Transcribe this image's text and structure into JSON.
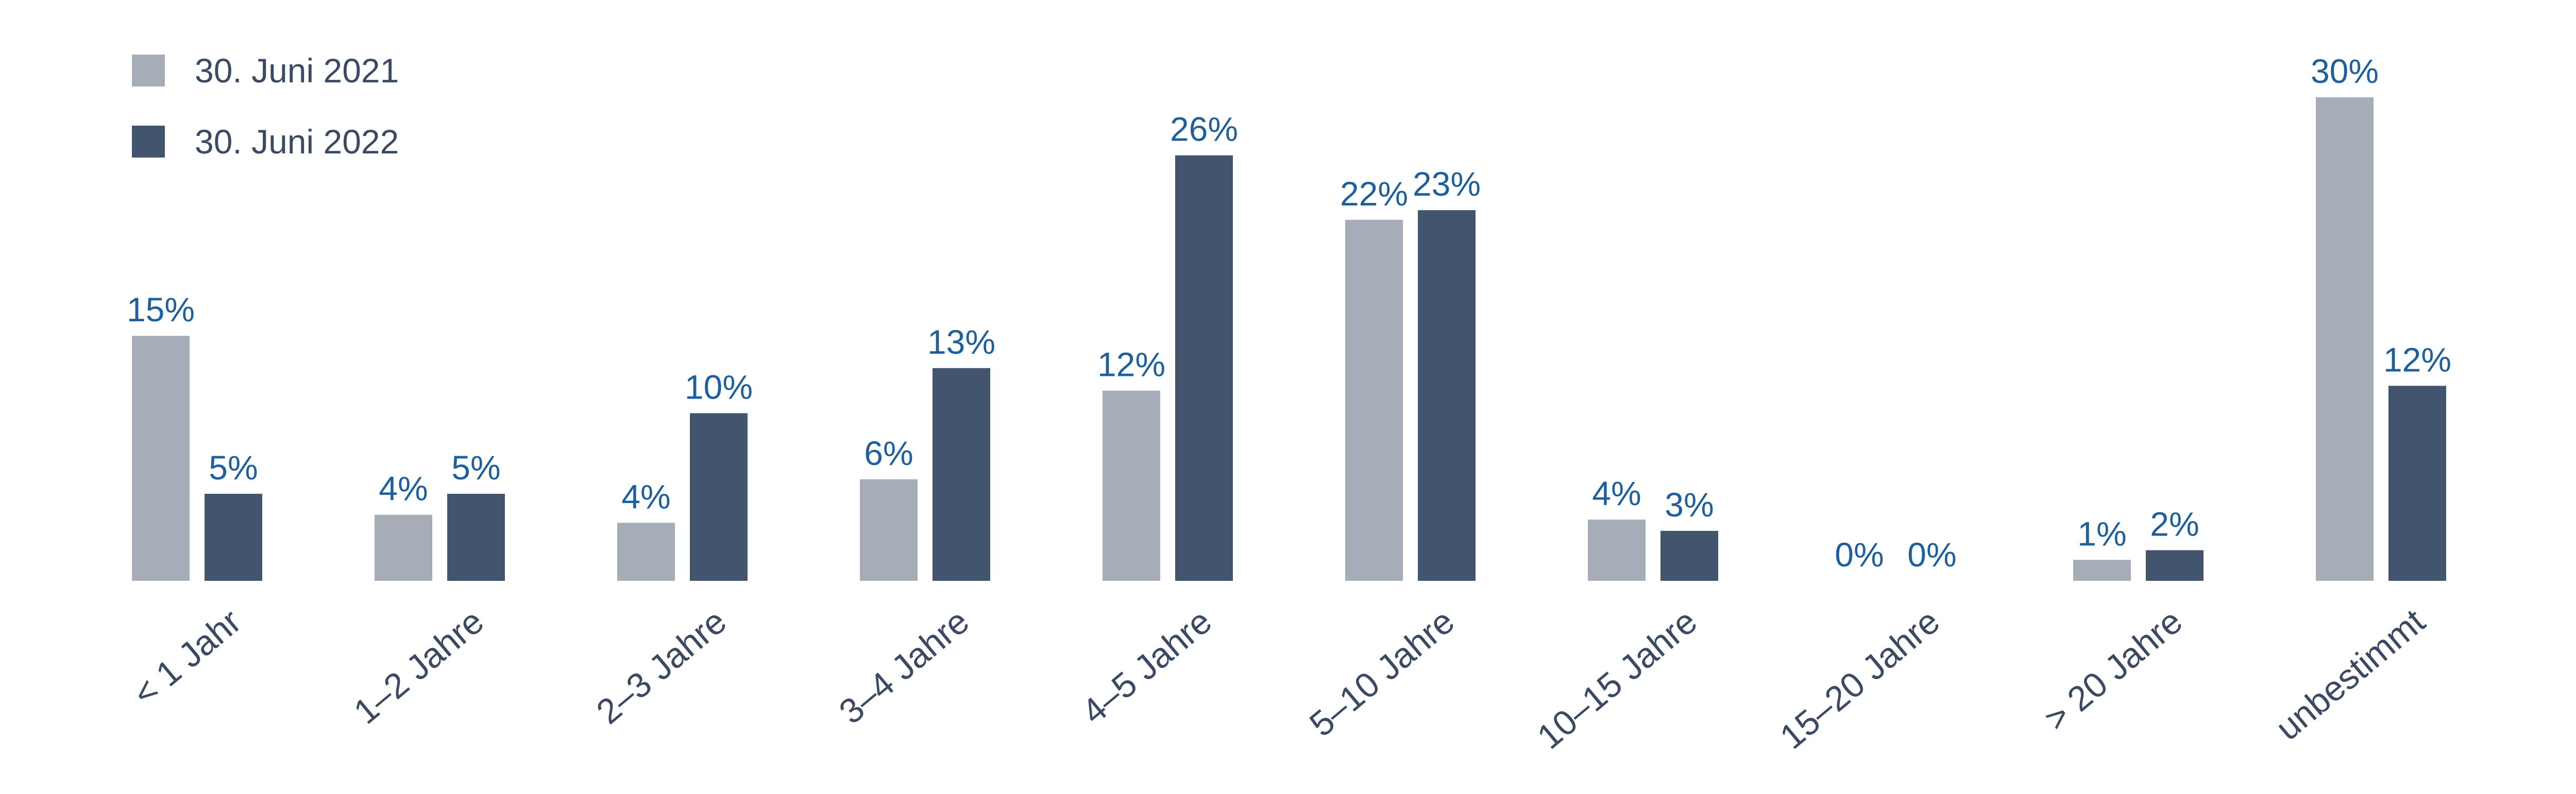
{
  "chart_data": {
    "type": "bar",
    "categories": [
      "< 1 Jahr",
      "1–2 Jahre",
      "2–3 Jahre",
      "3–4 Jahre",
      "4–5 Jahre",
      "5–10 Jahre",
      "10–15 Jahre",
      "15–20 Jahre",
      "> 20 Jahre",
      "unbestimmt"
    ],
    "series": [
      {
        "name": "30. Juni 2021",
        "color": "#a6adb8",
        "values": [
          15.2,
          4.1,
          3.6,
          6.3,
          11.8,
          22.4,
          3.8,
          0,
          1.3,
          30
        ],
        "value_labels": [
          "15%",
          "4%",
          "4%",
          "6%",
          "12%",
          "22%",
          "4%",
          "0%",
          "1%",
          "30%"
        ]
      },
      {
        "name": "30. Juni 2022",
        "color": "#43556e",
        "values": [
          5.4,
          5.4,
          10.4,
          13.2,
          26.4,
          23.0,
          3.1,
          0,
          1.9,
          12.1
        ],
        "value_labels": [
          "5%",
          "5%",
          "10%",
          "13%",
          "26%",
          "23%",
          "3%",
          "0%",
          "2%",
          "12%"
        ]
      }
    ],
    "legend": "top-left"
  }
}
